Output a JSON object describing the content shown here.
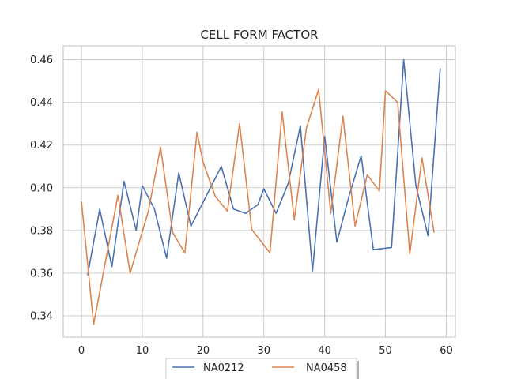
{
  "chart_data": {
    "type": "line",
    "title": "CELL FORM FACTOR",
    "xlabel": "",
    "ylabel": "",
    "xlim": [
      -3,
      61.5
    ],
    "ylim": [
      0.33,
      0.4665
    ],
    "xticks": [
      0,
      10,
      20,
      30,
      40,
      50,
      60
    ],
    "yticks": [
      0.34,
      0.36,
      0.38,
      0.4,
      0.42,
      0.44,
      0.46
    ],
    "ytick_labels": [
      "0.34",
      "0.36",
      "0.38",
      "0.40",
      "0.42",
      "0.44",
      "0.46"
    ],
    "grid": true,
    "legend_position": "bottom-center",
    "series": [
      {
        "name": "NA0212",
        "color": "#4c72b0",
        "x": [
          1,
          3,
          5,
          7,
          9,
          10,
          12,
          14,
          16,
          18,
          23,
          25,
          27,
          29,
          30,
          32,
          34,
          36,
          38,
          40,
          42,
          44,
          46,
          48,
          51,
          53,
          55,
          57,
          59
        ],
        "y": [
          0.359,
          0.39,
          0.363,
          0.403,
          0.38,
          0.401,
          0.39,
          0.367,
          0.407,
          0.382,
          0.41,
          0.39,
          0.388,
          0.392,
          0.3995,
          0.388,
          0.402,
          0.429,
          0.361,
          0.424,
          0.3745,
          0.396,
          0.415,
          0.371,
          0.372,
          0.46,
          0.401,
          0.3775,
          0.456
        ]
      },
      {
        "name": "NA0458",
        "color": "#dd8452",
        "x": [
          0,
          2,
          6,
          8,
          11,
          13,
          15,
          17,
          19,
          20,
          22,
          24,
          26,
          28,
          31,
          33,
          35,
          37,
          39,
          41,
          43,
          45,
          47,
          49,
          50,
          52,
          54,
          56,
          58
        ],
        "y": [
          0.3935,
          0.336,
          0.3965,
          0.36,
          0.389,
          0.419,
          0.379,
          0.3695,
          0.426,
          0.412,
          0.396,
          0.389,
          0.43,
          0.3805,
          0.3695,
          0.4355,
          0.385,
          0.428,
          0.446,
          0.388,
          0.4335,
          0.382,
          0.406,
          0.3985,
          0.4455,
          0.44,
          0.369,
          0.414,
          0.379
        ]
      }
    ]
  }
}
